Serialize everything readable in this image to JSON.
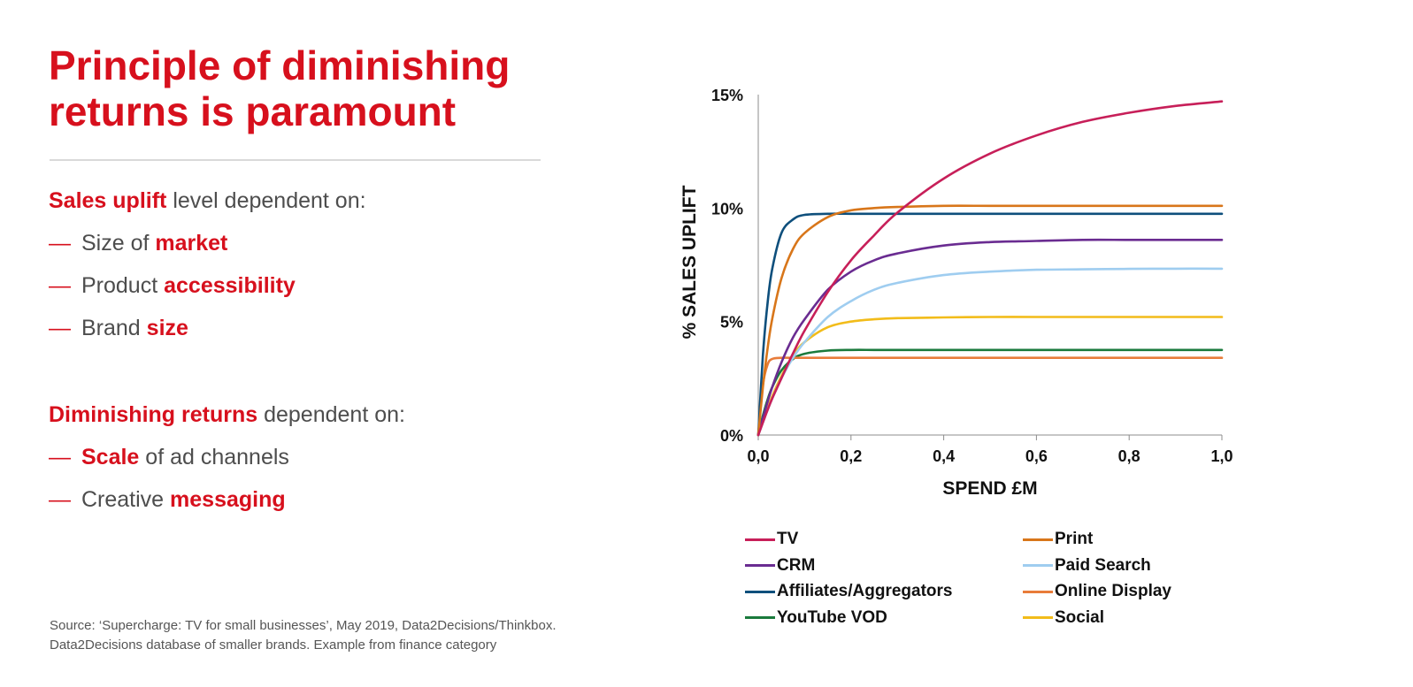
{
  "slide": {
    "title_line1": "Principle of diminishing",
    "title_line2": "returns is paramount",
    "block1": {
      "lead_highlight": "Sales uplift",
      "lead_rest": " level dependent on:",
      "items": [
        {
          "pre": "Size of ",
          "hl": "market",
          "post": ""
        },
        {
          "pre": "Product ",
          "hl": "accessibility",
          "post": ""
        },
        {
          "pre": "Brand ",
          "hl": "size",
          "post": ""
        }
      ]
    },
    "block2": {
      "lead_highlight": "Diminishing returns",
      "lead_rest": " dependent on:",
      "items": [
        {
          "pre": "",
          "hl": "Scale",
          "post": " of ad channels"
        },
        {
          "pre": "Creative ",
          "hl": "messaging",
          "post": ""
        }
      ]
    },
    "dash": "—",
    "source_line1": "Source: ‘Supercharge: TV for small businesses’, May 2019, Data2Decisions/Thinkbox.",
    "source_line2": "Data2Decisions database of smaller brands. Example from finance category",
    "accent_color": "#d7101d"
  },
  "chart_data": {
    "type": "line",
    "xlabel": "SPEND £M",
    "ylabel": "% SALES UPLIFT",
    "xlim": [
      0,
      1
    ],
    "ylim": [
      0,
      15
    ],
    "x_ticks": [
      0,
      0.2,
      0.4,
      0.6,
      0.8,
      1.0
    ],
    "x_tick_labels": [
      "0,0",
      "0,2",
      "0,4",
      "0,6",
      "0,8",
      "1,0"
    ],
    "y_ticks": [
      0,
      5,
      10,
      15
    ],
    "y_tick_labels": [
      "0%",
      "5%",
      "10%",
      "15%"
    ],
    "legend_position": "bottom",
    "x": [
      0,
      0.01,
      0.02,
      0.03,
      0.05,
      0.075,
      0.1,
      0.15,
      0.2,
      0.25,
      0.3,
      0.4,
      0.5,
      0.6,
      0.7,
      0.8,
      0.9,
      1.0
    ],
    "series": [
      {
        "name": "TV",
        "color": "#c71f59",
        "values": [
          0,
          0.55,
          1.1,
          1.6,
          2.5,
          3.6,
          4.6,
          6.3,
          7.7,
          8.8,
          9.8,
          11.3,
          12.4,
          13.2,
          13.8,
          14.2,
          14.5,
          14.7
        ]
      },
      {
        "name": "Print",
        "color": "#d8761a",
        "values": [
          0,
          2.1,
          3.8,
          5.1,
          6.9,
          8.2,
          8.9,
          9.6,
          9.9,
          10.0,
          10.05,
          10.1,
          10.1,
          10.1,
          10.1,
          10.1,
          10.1,
          10.1
        ]
      },
      {
        "name": "CRM",
        "color": "#6a2c91",
        "values": [
          0,
          0.75,
          1.45,
          2.1,
          3.2,
          4.3,
          5.1,
          6.4,
          7.2,
          7.7,
          8.0,
          8.35,
          8.5,
          8.55,
          8.6,
          8.6,
          8.6,
          8.6
        ]
      },
      {
        "name": "Paid Search",
        "color": "#9fcdf0",
        "values": [
          0,
          0.55,
          1.1,
          1.6,
          2.5,
          3.4,
          4.1,
          5.2,
          5.9,
          6.4,
          6.7,
          7.05,
          7.2,
          7.28,
          7.3,
          7.32,
          7.33,
          7.33
        ]
      },
      {
        "name": "Affiliates/Aggregators",
        "color": "#0e4f7c",
        "values": [
          0,
          3.5,
          5.8,
          7.3,
          8.9,
          9.5,
          9.7,
          9.75,
          9.75,
          9.75,
          9.75,
          9.75,
          9.75,
          9.75,
          9.75,
          9.75,
          9.75,
          9.75
        ]
      },
      {
        "name": "Online Display",
        "color": "#e87c3a",
        "values": [
          0,
          2.2,
          3.1,
          3.35,
          3.4,
          3.4,
          3.4,
          3.4,
          3.4,
          3.4,
          3.4,
          3.4,
          3.4,
          3.4,
          3.4,
          3.4,
          3.4,
          3.4
        ]
      },
      {
        "name": "YouTube VOD",
        "color": "#1a7a3c",
        "values": [
          0,
          0.85,
          1.55,
          2.1,
          2.85,
          3.35,
          3.58,
          3.72,
          3.75,
          3.75,
          3.75,
          3.75,
          3.75,
          3.75,
          3.75,
          3.75,
          3.75,
          3.75
        ]
      },
      {
        "name": "Social",
        "color": "#f2bc1a",
        "values": [
          0,
          0.6,
          1.15,
          1.7,
          2.6,
          3.5,
          4.1,
          4.75,
          5.0,
          5.1,
          5.15,
          5.18,
          5.2,
          5.2,
          5.2,
          5.2,
          5.2,
          5.2
        ]
      }
    ]
  }
}
